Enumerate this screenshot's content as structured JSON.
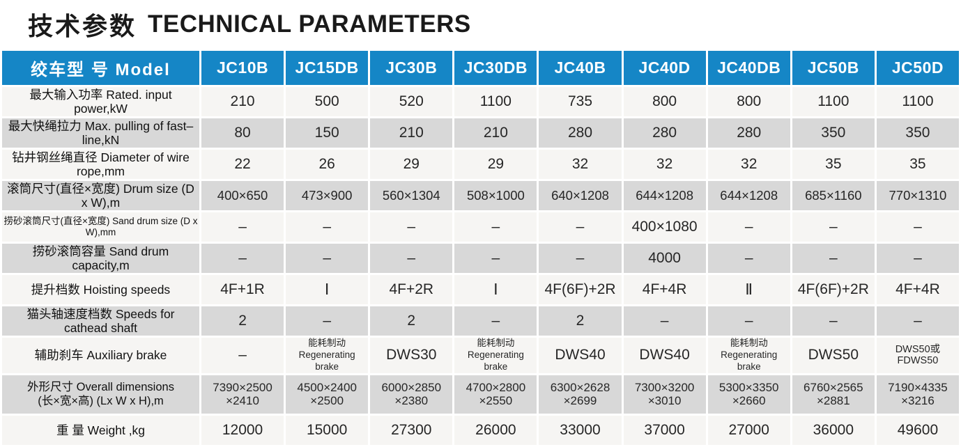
{
  "title": {
    "zh": "技术参数",
    "en": "TECHNICAL PARAMETERS"
  },
  "colors": {
    "header_bg": "#1586c6",
    "header_text": "#ffffff",
    "row_light": "#f6f5f3",
    "row_shaded": "#d8d8d8",
    "body_text": "#262626"
  },
  "table": {
    "model_header": "绞车型 号 Model",
    "columns": [
      "JC10B",
      "JC15DB",
      "JC30B",
      "JC30DB",
      "JC40B",
      "JC40D",
      "JC40DB",
      "JC50B",
      "JC50D"
    ],
    "rows": [
      {
        "label": "最大输入功率 Rated. input power,kW",
        "values": [
          "210",
          "500",
          "520",
          "1100",
          "735",
          "800",
          "800",
          "1100",
          "1100"
        ]
      },
      {
        "label": "最大快绳拉力 Max. pulling of fast–line,kN",
        "values": [
          "80",
          "150",
          "210",
          "210",
          "280",
          "280",
          "280",
          "350",
          "350"
        ]
      },
      {
        "label": "钻井钢丝绳直径 Diameter of wire rope,mm",
        "values": [
          "22",
          "26",
          "29",
          "29",
          "32",
          "32",
          "32",
          "35",
          "35"
        ]
      },
      {
        "label": "滚筒尺寸(直径×宽度) Drum size (D x W),m",
        "values": [
          "400×650",
          "473×900",
          "560×1304",
          "508×1000",
          "640×1208",
          "644×1208",
          "644×1208",
          "685×1160",
          "770×1310"
        ]
      },
      {
        "label": "捞砂滚筒尺寸(直径×宽度) Sand drum size (D x W),mm",
        "values": [
          "–",
          "–",
          "–",
          "–",
          "–",
          "400×1080",
          "–",
          "–",
          "–"
        ]
      },
      {
        "label": "捞砂滚筒容量 Sand drum capacity,m",
        "values": [
          "–",
          "–",
          "–",
          "–",
          "–",
          "4000",
          "–",
          "–",
          "–"
        ]
      },
      {
        "label": "提升档数 Hoisting speeds",
        "values": [
          "4F+1R",
          "Ⅰ",
          "4F+2R",
          "Ⅰ",
          "4F(6F)+2R",
          "4F+4R",
          "Ⅱ",
          "4F(6F)+2R",
          "4F+4R"
        ]
      },
      {
        "label": "猫头轴速度档数 Speeds for cathead shaft",
        "values": [
          "2",
          "–",
          "2",
          "–",
          "2",
          "–",
          "–",
          "–",
          "–"
        ]
      },
      {
        "label": "辅助刹车 Auxiliary brake",
        "values": [
          "–",
          "能耗制动\nRegenerating brake",
          "DWS30",
          "能耗制动\nRegenerating brake",
          "DWS40",
          "DWS40",
          "能耗制动\nRegenerating brake",
          "DWS50",
          "DWS50或FDWS50"
        ]
      },
      {
        "label": "外形尺寸 Overall dimensions\n(长×宽×高) (Lx W x H),m",
        "values": [
          "7390×2500\n×2410",
          "4500×2400\n×2500",
          "6000×2850\n×2380",
          "4700×2800\n×2550",
          "6300×2628\n×2699",
          "7300×3200\n×3010",
          "5300×3350\n×2660",
          "6760×2565\n×2881",
          "7190×4335\n×3216"
        ]
      },
      {
        "label": "重 量 Weight ,kg",
        "values": [
          "12000",
          "15000",
          "27300",
          "26000",
          "33000",
          "37000",
          "27000",
          "36000",
          "49600"
        ]
      }
    ]
  }
}
